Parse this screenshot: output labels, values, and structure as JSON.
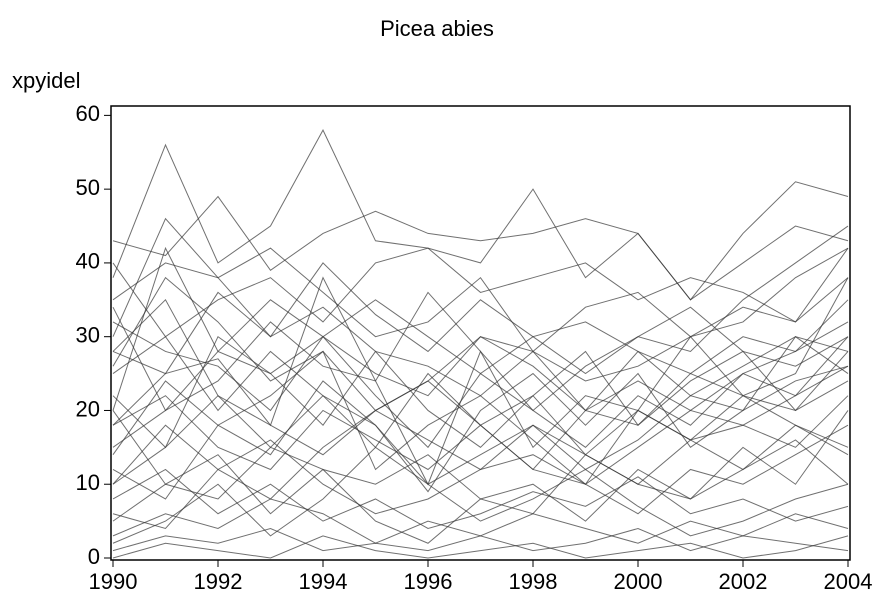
{
  "chart_data": {
    "type": "line",
    "title": "Picea abies",
    "y_label": "xpyidel",
    "color": "#333333",
    "xlim": [
      1990,
      2004
    ],
    "xticks": [
      1990,
      1992,
      1994,
      1996,
      1998,
      2000,
      2002,
      2004
    ],
    "ylim": [
      0,
      61
    ],
    "yticks": [
      0,
      10,
      20,
      30,
      40,
      50,
      60
    ],
    "x": [
      1990,
      1991,
      1992,
      1993,
      1994,
      1995,
      1996,
      1997,
      1998,
      1999,
      2000,
      2001,
      2002,
      2003,
      2004
    ],
    "series": [
      {
        "values": [
          38,
          56,
          40,
          45,
          58,
          43,
          42,
          40,
          50,
          38,
          44,
          35,
          40,
          45,
          43
        ]
      },
      {
        "values": [
          43,
          41,
          49,
          39,
          44,
          47,
          44,
          43,
          44,
          46,
          44,
          35,
          44,
          51,
          49
        ]
      },
      {
        "values": [
          20,
          42,
          28,
          25,
          30,
          22,
          15,
          25,
          20,
          15,
          22,
          18,
          25,
          22,
          30
        ]
      },
      {
        "values": [
          18,
          25,
          27,
          18,
          38,
          24,
          10,
          28,
          15,
          22,
          20,
          30,
          22,
          25,
          38
        ]
      },
      {
        "values": [
          28,
          35,
          22,
          15,
          22,
          18,
          9,
          20,
          25,
          18,
          25,
          15,
          20,
          30,
          25
        ]
      },
      {
        "values": [
          5,
          10,
          8,
          15,
          12,
          5,
          2,
          8,
          10,
          5,
          12,
          8,
          15,
          10,
          20
        ]
      },
      {
        "values": [
          2,
          5,
          10,
          3,
          8,
          15,
          10,
          5,
          8,
          12,
          7,
          3,
          5,
          8,
          10
        ]
      },
      {
        "values": [
          0,
          2,
          1,
          0,
          3,
          1,
          0,
          1,
          2,
          0,
          1,
          2,
          0,
          1,
          3
        ]
      },
      {
        "values": [
          15,
          20,
          28,
          35,
          30,
          25,
          22,
          30,
          28,
          20,
          18,
          25,
          22,
          20,
          28
        ]
      },
      {
        "values": [
          30,
          46,
          38,
          30,
          40,
          33,
          28,
          35,
          30,
          25,
          30,
          28,
          35,
          40,
          45
        ]
      },
      {
        "values": [
          10,
          18,
          12,
          8,
          15,
          20,
          16,
          12,
          18,
          14,
          10,
          16,
          12,
          18,
          15
        ]
      },
      {
        "values": [
          25,
          30,
          20,
          28,
          22,
          15,
          25,
          18,
          12,
          20,
          24,
          20,
          18,
          22,
          26
        ]
      },
      {
        "values": [
          35,
          40,
          38,
          42,
          36,
          30,
          32,
          38,
          28,
          34,
          36,
          30,
          32,
          38,
          42
        ]
      },
      {
        "values": [
          8,
          12,
          6,
          10,
          5,
          8,
          4,
          6,
          9,
          7,
          11,
          6,
          8,
          5,
          7
        ]
      },
      {
        "values": [
          22,
          15,
          30,
          25,
          18,
          28,
          20,
          15,
          22,
          28,
          18,
          24,
          28,
          20,
          24
        ]
      },
      {
        "values": [
          12,
          8,
          18,
          22,
          28,
          12,
          18,
          22,
          16,
          10,
          15,
          20,
          25,
          28,
          32
        ]
      },
      {
        "values": [
          3,
          6,
          4,
          8,
          6,
          2,
          5,
          3,
          6,
          4,
          2,
          5,
          3,
          6,
          4
        ]
      },
      {
        "values": [
          32,
          28,
          26,
          20,
          30,
          35,
          30,
          25,
          30,
          32,
          28,
          25,
          30,
          28,
          35
        ]
      },
      {
        "values": [
          18,
          22,
          15,
          12,
          20,
          16,
          12,
          18,
          22,
          14,
          20,
          16,
          18,
          15,
          22
        ]
      },
      {
        "values": [
          40,
          30,
          35,
          38,
          32,
          40,
          42,
          36,
          38,
          40,
          35,
          38,
          36,
          32,
          38
        ]
      },
      {
        "values": [
          6,
          4,
          12,
          16,
          10,
          6,
          8,
          12,
          14,
          10,
          6,
          12,
          10,
          14,
          18
        ]
      },
      {
        "values": [
          26,
          38,
          32,
          24,
          28,
          20,
          24,
          30,
          26,
          20,
          28,
          22,
          26,
          30,
          28
        ]
      },
      {
        "values": [
          14,
          24,
          18,
          14,
          24,
          18,
          10,
          14,
          18,
          12,
          16,
          22,
          20,
          24,
          26
        ]
      },
      {
        "values": [
          1,
          3,
          2,
          4,
          1,
          2,
          1,
          3,
          1,
          2,
          4,
          1,
          3,
          2,
          1
        ]
      },
      {
        "values": [
          34,
          20,
          24,
          32,
          26,
          24,
          36,
          28,
          20,
          26,
          30,
          34,
          28,
          26,
          30
        ]
      },
      {
        "values": [
          20,
          10,
          14,
          6,
          12,
          10,
          14,
          8,
          6,
          14,
          10,
          8,
          12,
          16,
          10
        ]
      },
      {
        "values": [
          28,
          25,
          36,
          30,
          34,
          28,
          26,
          22,
          28,
          24,
          26,
          30,
          34,
          32,
          42
        ]
      },
      {
        "values": [
          10,
          15,
          22,
          18,
          14,
          20,
          24,
          18,
          12,
          10,
          20,
          16,
          22,
          18,
          14
        ]
      }
    ]
  }
}
